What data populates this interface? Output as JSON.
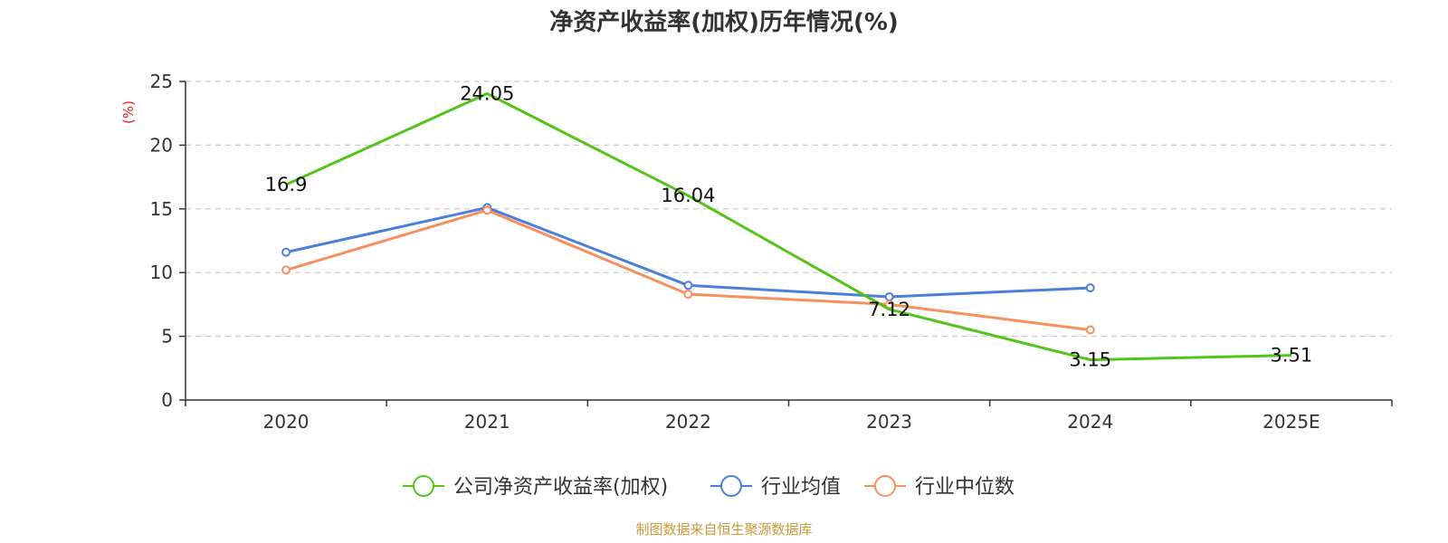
{
  "chart_data": {
    "type": "line",
    "title": "净资产收益率(加权)历年情况(%)",
    "xlabel": "",
    "ylabel": "(%)",
    "categories": [
      "2020",
      "2021",
      "2022",
      "2023",
      "2024",
      "2025E"
    ],
    "ylim": [
      0,
      25
    ],
    "yticks": [
      0,
      5,
      10,
      15,
      20,
      25
    ],
    "grid": true,
    "legend_position": "bottom-center",
    "series": [
      {
        "name": "公司净资产收益率(加权)",
        "color": "#52c41a",
        "values": [
          16.9,
          24.05,
          16.04,
          7.12,
          3.15,
          3.51
        ],
        "labels": [
          "16.9",
          "24.05",
          "16.04",
          "7.12",
          "3.15",
          "3.51"
        ]
      },
      {
        "name": "行业均值",
        "color": "#4a7fdc",
        "values": [
          11.6,
          15.1,
          9.0,
          8.1,
          8.8,
          null
        ]
      },
      {
        "name": "行业中位数",
        "color": "#f78f5e",
        "values": [
          10.2,
          14.9,
          8.3,
          7.5,
          5.5,
          null
        ]
      }
    ]
  },
  "ylabel_color": "#e02020",
  "source": {
    "text": "制图数据来自恒生聚源数据库",
    "color": "#c89a3a"
  }
}
